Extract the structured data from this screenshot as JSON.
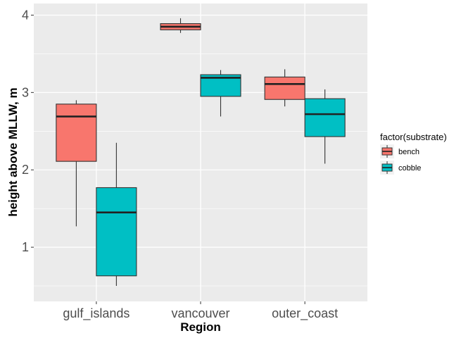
{
  "chart_data": {
    "type": "boxplot",
    "xlabel": "Region",
    "ylabel": "height above MLLW, m",
    "ylim": [
      0.3,
      4.15
    ],
    "yticks": [
      1,
      2,
      3,
      4
    ],
    "categories": [
      "gulf_islands",
      "vancouver",
      "outer_coast"
    ],
    "legend": {
      "title": "factor(substrate)",
      "placement": "right"
    },
    "grid": true,
    "series": [
      {
        "name": "bench",
        "color": "#F8766D",
        "boxes": [
          {
            "category": "gulf_islands",
            "min": 1.27,
            "q1": 2.11,
            "median": 2.69,
            "q3": 2.85,
            "max": 2.9
          },
          {
            "category": "vancouver",
            "min": 3.77,
            "q1": 3.81,
            "median": 3.85,
            "q3": 3.89,
            "max": 3.96
          },
          {
            "category": "outer_coast",
            "min": 2.82,
            "q1": 2.91,
            "median": 3.11,
            "q3": 3.2,
            "max": 3.3
          }
        ]
      },
      {
        "name": "cobble",
        "color": "#00BFC4",
        "boxes": [
          {
            "category": "gulf_islands",
            "min": 0.5,
            "q1": 0.63,
            "median": 1.45,
            "q3": 1.77,
            "max": 2.35
          },
          {
            "category": "vancouver",
            "min": 2.69,
            "q1": 2.95,
            "median": 3.19,
            "q3": 3.23,
            "max": 3.29
          },
          {
            "category": "outer_coast",
            "min": 2.08,
            "q1": 2.43,
            "median": 2.72,
            "q3": 2.92,
            "max": 3.04
          }
        ]
      }
    ]
  }
}
